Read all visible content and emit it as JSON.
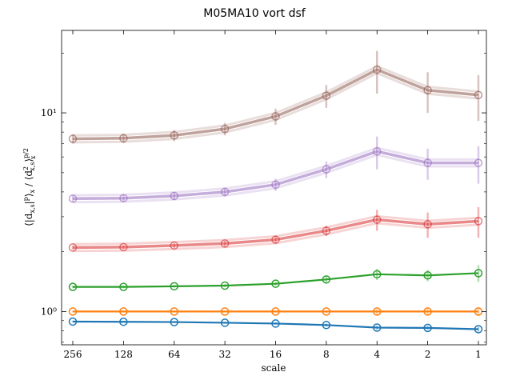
{
  "chart_data": {
    "type": "line",
    "title": "M05MA10 vort dsf",
    "xlabel": "scale",
    "ylabel": "⟨|d_{x,s}|^p⟩_x / ⟨d_{x,s}^2⟩_x^{p/2}",
    "x_scale": "log2-reversed",
    "y_scale": "log",
    "x": [
      256,
      128,
      64,
      32,
      16,
      8,
      4,
      2,
      1
    ],
    "x_tick_labels": [
      "256",
      "128",
      "64",
      "32",
      "16",
      "8",
      "4",
      "2",
      "1"
    ],
    "y_tick_labels": [
      {
        "value": 1,
        "text": "10⁰"
      },
      {
        "value": 10,
        "text": "10¹"
      }
    ],
    "ylim": [
      0.68,
      26
    ],
    "grid": false,
    "legend": "none",
    "series": [
      {
        "color": "#1f77b4",
        "values": [
          0.89,
          0.888,
          0.885,
          0.878,
          0.87,
          0.855,
          0.83,
          0.827,
          0.815
        ],
        "err": [
          0.01,
          0.01,
          0.01,
          0.01,
          0.012,
          0.015,
          0.02,
          0.02,
          0.025
        ]
      },
      {
        "color": "#ff7f0e",
        "values": [
          1.0,
          1.0,
          1.0,
          1.0,
          1.0,
          1.0,
          1.0,
          1.0,
          1.0
        ],
        "err": [
          0.01,
          0.01,
          0.01,
          0.01,
          0.01,
          0.015,
          0.03,
          0.04,
          0.05
        ]
      },
      {
        "color": "#2ca02c",
        "values": [
          1.33,
          1.33,
          1.34,
          1.35,
          1.38,
          1.45,
          1.54,
          1.52,
          1.56
        ],
        "err": [
          0.02,
          0.02,
          0.02,
          0.025,
          0.03,
          0.05,
          0.1,
          0.1,
          0.15
        ]
      },
      {
        "color": "#d62728",
        "values": [
          2.1,
          2.11,
          2.15,
          2.2,
          2.3,
          2.55,
          2.9,
          2.75,
          2.85
        ],
        "err": [
          0.05,
          0.05,
          0.06,
          0.07,
          0.1,
          0.15,
          0.35,
          0.4,
          0.5
        ]
      },
      {
        "color": "#9467bd",
        "values": [
          3.7,
          3.72,
          3.82,
          4.0,
          4.35,
          5.2,
          6.4,
          5.6,
          5.6
        ],
        "err": [
          0.15,
          0.15,
          0.18,
          0.2,
          0.3,
          0.5,
          1.2,
          1.0,
          1.2
        ]
      },
      {
        "color": "#8c564b",
        "values": [
          7.4,
          7.45,
          7.7,
          8.3,
          9.6,
          12.2,
          16.5,
          13.0,
          12.3
        ],
        "err": [
          0.4,
          0.4,
          0.5,
          0.6,
          0.9,
          1.6,
          4.0,
          3.0,
          3.2
        ]
      }
    ]
  }
}
